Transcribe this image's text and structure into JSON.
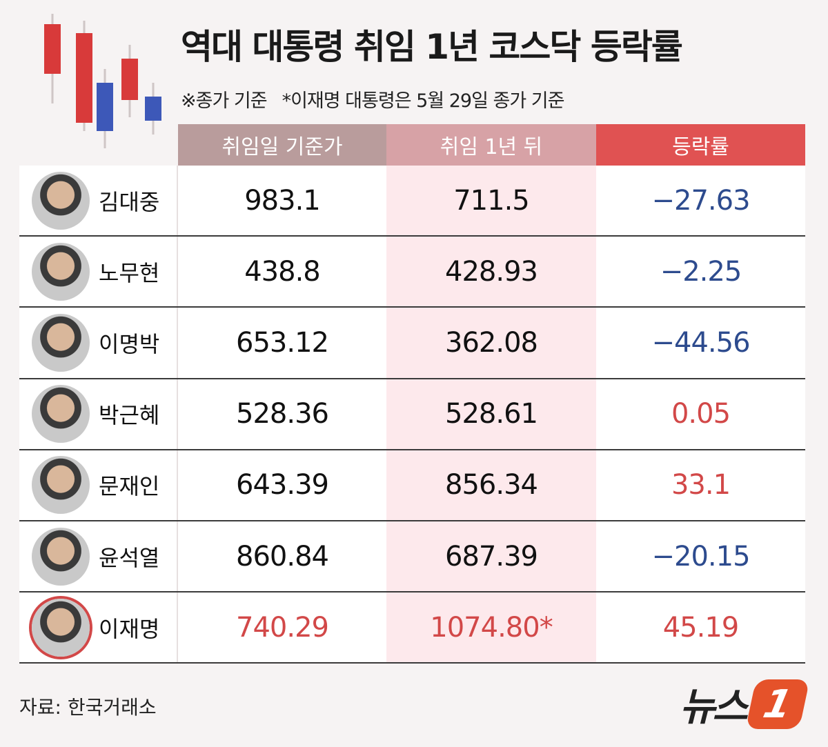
{
  "header": {
    "title": "역대 대통령 취임 1년 코스닥 등락률",
    "notes": [
      "※종가 기준",
      "*이재명 대통령은 5월 29일 종가 기준"
    ]
  },
  "table": {
    "columns": [
      "취임일 기준가",
      "취임 1년 뒤",
      "등락률"
    ],
    "rows": [
      {
        "name": "김대중",
        "cells": [
          "983.1",
          "711.5",
          "−27.63"
        ]
      },
      {
        "name": "노무현",
        "cells": [
          "438.8",
          "428.93",
          "−2.25"
        ]
      },
      {
        "name": "이명박",
        "cells": [
          "653.12",
          "362.08",
          "−44.56"
        ]
      },
      {
        "name": "박근혜",
        "cells": [
          "528.36",
          "528.61",
          "0.05"
        ]
      },
      {
        "name": "문재인",
        "cells": [
          "643.39",
          "856.34",
          "33.1"
        ]
      },
      {
        "name": "윤석열",
        "cells": [
          "860.84",
          "687.39",
          "−20.15"
        ]
      },
      {
        "name": "이재명",
        "cells": [
          "740.29",
          "1074.80*",
          "45.19"
        ],
        "highlight": true
      }
    ],
    "colors": {
      "negative": "#2d4b8e",
      "positive": "#d24848",
      "header": [
        "#b99c9c",
        "#d7a2a6",
        "#e05252"
      ]
    }
  },
  "footer": {
    "source": "자료: 한국거래소",
    "logo": {
      "text": "뉴스",
      "mark": "1"
    }
  }
}
